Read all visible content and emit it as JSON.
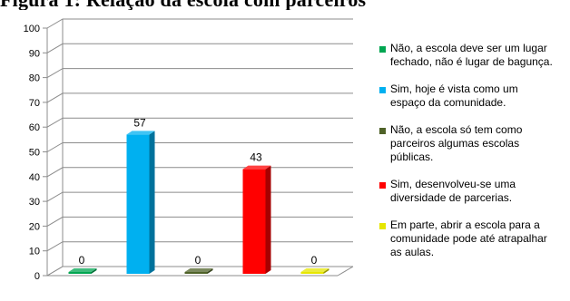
{
  "page": {
    "header_text": "Figura 1: Relação da escola com parceiros"
  },
  "chart_data": {
    "type": "bar",
    "title": "",
    "xlabel": "",
    "ylabel": "",
    "ylim": [
      0,
      100
    ],
    "yticks": [
      0,
      10,
      20,
      30,
      40,
      50,
      60,
      70,
      80,
      90,
      100
    ],
    "yticks_text": [
      "0",
      "10",
      "20",
      "30",
      "40",
      "50",
      "60",
      "70",
      "80",
      "90",
      "100"
    ],
    "style": "3d-column",
    "grid": true,
    "legend_position": "right",
    "categories": [
      "Não, a escola deve ser um lugar fechado, não é lugar de bagunça.",
      "Sim, hoje é vista como um espaço da comunidade.",
      "Não, a escola só tem como parceiros algumas escolas públicas.",
      "Sim, desenvolveu-se uma diversidade de parcerias.",
      "Em parte, abrir a escola para a comunidade pode até atrapalhar as aulas."
    ],
    "values": [
      0,
      57,
      0,
      43,
      0
    ],
    "value_labels": [
      "0",
      "57",
      "0",
      "43",
      "0"
    ],
    "colors": [
      "#00A651",
      "#00B0F0",
      "#4F6228",
      "#FF0000",
      "#E6E600"
    ],
    "legend": [
      {
        "lines": [
          "Não, a escola deve ser um lugar",
          "fechado, não é lugar de bagunça."
        ],
        "color": "#00A651"
      },
      {
        "lines": [
          "Sim, hoje é vista como um",
          "espaço da comunidade."
        ],
        "color": "#00B0F0"
      },
      {
        "lines": [
          "Não, a escola só tem como",
          "parceiros algumas escolas",
          "públicas."
        ],
        "color": "#4F6228"
      },
      {
        "lines": [
          "Sim, desenvolveu-se uma",
          "diversidade de parcerias."
        ],
        "color": "#FF0000"
      },
      {
        "lines": [
          "Em parte, abrir a escola para a",
          "comunidade pode até atrapalhar",
          "as aulas."
        ],
        "color": "#E6E600"
      }
    ]
  }
}
